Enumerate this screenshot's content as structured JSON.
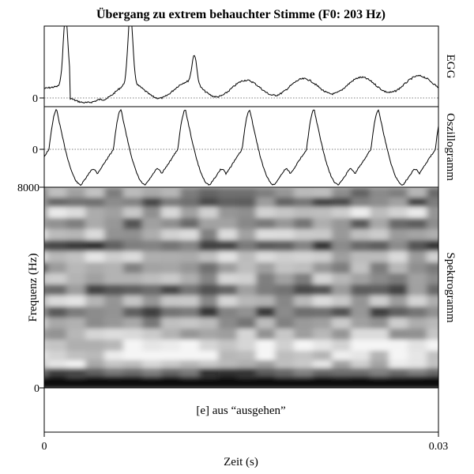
{
  "chart_data": {
    "type": "line",
    "title": "Übergang zu extrem behauchter Stimme (F0: 203 Hz)",
    "xlabel": "Zeit (s)",
    "ylabel": "Frequenz (Hz)",
    "xlim": [
      0,
      0.03
    ],
    "x_ticks": [
      "0",
      "0.03"
    ],
    "panels": [
      {
        "name": "EGG",
        "zero_label": "0",
        "zero_line": true
      },
      {
        "name": "Oszillogramm",
        "zero_label": "0",
        "zero_line": true
      },
      {
        "name": "Spektrogramm",
        "type": "heatmap",
        "ylim": [
          0,
          8000
        ],
        "y_ticks": [
          "8000",
          "0"
        ]
      }
    ],
    "annotation_text": "[e] aus “ausgehen”"
  }
}
